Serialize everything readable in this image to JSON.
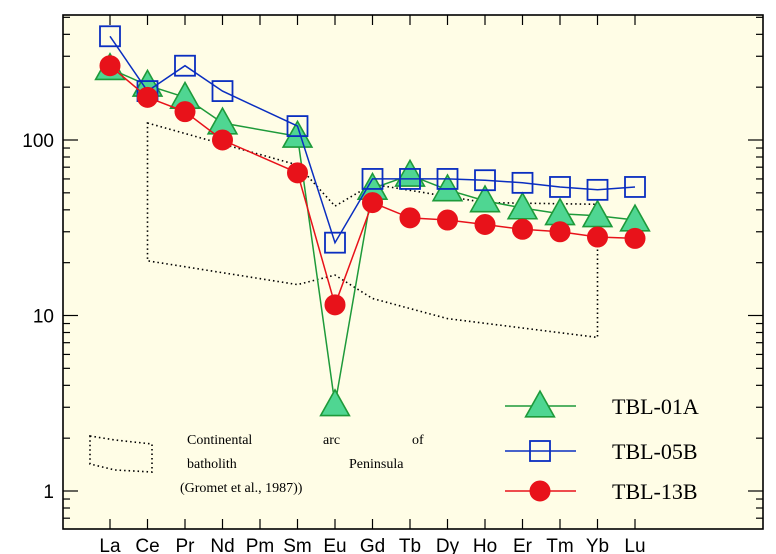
{
  "chart_data": {
    "type": "line",
    "title": "",
    "xlabel": "",
    "ylabel": "",
    "yscale": "log",
    "ylim": [
      0.7,
      500
    ],
    "yticks": [
      1,
      10,
      100
    ],
    "ytick_labels": [
      "1",
      "10",
      "100"
    ],
    "categories": [
      "La",
      "Ce",
      "Pr",
      "Nd",
      "Pm",
      "Sm",
      "Eu",
      "Gd",
      "Tb",
      "Dy",
      "Ho",
      "Er",
      "Tm",
      "Yb",
      "Lu"
    ],
    "series": [
      {
        "name": "TBL-01A",
        "marker": "triangle",
        "color": "#1e9a3a",
        "fill": "#4fd692",
        "values": [
          255,
          205,
          175,
          125,
          null,
          105,
          3.1,
          53,
          63,
          52,
          45,
          41,
          38,
          37,
          35
        ]
      },
      {
        "name": "TBL-05B",
        "marker": "square",
        "color": "#0a2ec0",
        "fill": "none",
        "values": [
          390,
          190,
          265,
          190,
          null,
          120,
          26,
          60,
          60,
          60,
          59,
          57,
          54,
          52,
          54
        ]
      },
      {
        "name": "TBL-13B",
        "marker": "circle",
        "color": "#e8121a",
        "fill": "#e8121a",
        "values": [
          265,
          175,
          145,
          100,
          null,
          65,
          11.5,
          44,
          36,
          35,
          33,
          31,
          30,
          28,
          27.5
        ]
      }
    ],
    "field": {
      "upper": [
        {
          "x": "Ce",
          "y": 125
        },
        {
          "x": "Sm",
          "y": 72
        },
        {
          "x": "Eu",
          "y": 42
        },
        {
          "x": "Gd",
          "y": 56
        },
        {
          "x": "Ho",
          "y": 44
        },
        {
          "x": "Yb",
          "y": 43
        }
      ],
      "lower": [
        {
          "x": "Yb",
          "y": 7.5
        },
        {
          "x": "Dy",
          "y": 9.6
        },
        {
          "x": "Gd",
          "y": 12.5
        },
        {
          "x": "Eu",
          "y": 17
        },
        {
          "x": "Sm",
          "y": 15
        },
        {
          "x": "Ce",
          "y": 20.5
        }
      ]
    },
    "annotation": {
      "lines": [
        "Continental arc of",
        "batholith Peninsula",
        "(Gromet et al., 1987))"
      ]
    },
    "legend_position": "bottom-right",
    "background_color": "#fffde6",
    "grid": false
  }
}
